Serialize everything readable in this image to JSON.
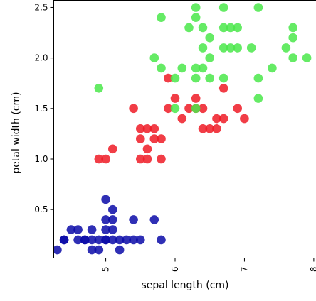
{
  "chart_data": {
    "type": "scatter",
    "title": "",
    "xlabel": "sepal length (cm)",
    "ylabel": "petal width (cm)",
    "xlim": [
      4.25,
      8.15
    ],
    "ylim": [
      0.02,
      2.57
    ],
    "xticks": [
      5,
      6,
      7,
      8
    ],
    "xtick_labels": [
      "5",
      "6",
      "7",
      "8"
    ],
    "yticks": [
      0.5,
      1.0,
      1.5,
      2.0,
      2.5
    ],
    "ytick_labels": [
      "0.5",
      "1.0",
      "1.5",
      "2.0",
      "2.5"
    ],
    "grid": false,
    "legend": false,
    "series": [
      {
        "color": "#0a0aa8",
        "points": [
          [
            4.3,
            0.1
          ],
          [
            4.4,
            0.2
          ],
          [
            4.4,
            0.2
          ],
          [
            4.5,
            0.3
          ],
          [
            4.6,
            0.2
          ],
          [
            4.6,
            0.3
          ],
          [
            4.7,
            0.2
          ],
          [
            4.7,
            0.2
          ],
          [
            4.8,
            0.2
          ],
          [
            4.8,
            0.1
          ],
          [
            4.8,
            0.3
          ],
          [
            4.9,
            0.2
          ],
          [
            4.9,
            0.1
          ],
          [
            5.0,
            0.2
          ],
          [
            5.0,
            0.3
          ],
          [
            5.0,
            0.2
          ],
          [
            5.0,
            0.6
          ],
          [
            5.0,
            0.4
          ],
          [
            5.1,
            0.2
          ],
          [
            5.1,
            0.3
          ],
          [
            5.1,
            0.4
          ],
          [
            5.1,
            0.5
          ],
          [
            5.2,
            0.2
          ],
          [
            5.2,
            0.1
          ],
          [
            5.3,
            0.2
          ],
          [
            5.4,
            0.2
          ],
          [
            5.4,
            0.4
          ],
          [
            5.5,
            0.2
          ],
          [
            5.7,
            0.4
          ],
          [
            5.8,
            0.2
          ]
        ]
      },
      {
        "color": "#ee1b26",
        "points": [
          [
            4.9,
            1.0
          ],
          [
            5.0,
            1.0
          ],
          [
            5.1,
            1.1
          ],
          [
            5.5,
            1.0
          ],
          [
            5.6,
            1.1
          ],
          [
            5.6,
            1.0
          ],
          [
            5.5,
            1.2
          ],
          [
            5.5,
            1.3
          ],
          [
            5.6,
            1.3
          ],
          [
            5.7,
            1.3
          ],
          [
            5.8,
            1.2
          ],
          [
            5.8,
            1.0
          ],
          [
            5.9,
            1.5
          ],
          [
            5.9,
            1.8
          ],
          [
            6.0,
            1.6
          ],
          [
            6.1,
            1.4
          ],
          [
            6.2,
            1.5
          ],
          [
            6.3,
            1.5
          ],
          [
            6.3,
            1.6
          ],
          [
            6.4,
            1.5
          ],
          [
            6.4,
            1.3
          ],
          [
            6.5,
            1.3
          ],
          [
            6.6,
            1.3
          ],
          [
            6.6,
            1.4
          ],
          [
            6.7,
            1.4
          ],
          [
            6.7,
            1.7
          ],
          [
            6.9,
            1.5
          ],
          [
            7.0,
            1.4
          ],
          [
            5.7,
            1.2
          ],
          [
            5.4,
            1.5
          ]
        ]
      },
      {
        "color": "#4ae84a",
        "points": [
          [
            4.9,
            1.7
          ],
          [
            5.7,
            2.0
          ],
          [
            5.8,
            1.9
          ],
          [
            5.8,
            2.4
          ],
          [
            6.0,
            1.8
          ],
          [
            6.0,
            1.5
          ],
          [
            6.1,
            1.9
          ],
          [
            6.2,
            2.3
          ],
          [
            6.3,
            2.5
          ],
          [
            6.3,
            1.8
          ],
          [
            6.3,
            1.9
          ],
          [
            6.3,
            2.4
          ],
          [
            6.4,
            2.3
          ],
          [
            6.4,
            1.9
          ],
          [
            6.4,
            2.1
          ],
          [
            6.5,
            2.0
          ],
          [
            6.5,
            2.2
          ],
          [
            6.5,
            1.8
          ],
          [
            6.7,
            2.5
          ],
          [
            6.7,
            2.3
          ],
          [
            6.7,
            2.1
          ],
          [
            6.7,
            1.8
          ],
          [
            6.8,
            2.3
          ],
          [
            6.8,
            2.1
          ],
          [
            6.9,
            2.3
          ],
          [
            6.9,
            2.1
          ],
          [
            7.1,
            2.1
          ],
          [
            7.2,
            2.5
          ],
          [
            7.2,
            1.8
          ],
          [
            7.2,
            1.6
          ],
          [
            7.4,
            1.9
          ],
          [
            7.6,
            2.1
          ],
          [
            7.7,
            2.3
          ],
          [
            7.7,
            2.2
          ],
          [
            7.7,
            2.0
          ],
          [
            7.9,
            2.0
          ],
          [
            6.3,
            1.5
          ]
        ]
      }
    ]
  }
}
